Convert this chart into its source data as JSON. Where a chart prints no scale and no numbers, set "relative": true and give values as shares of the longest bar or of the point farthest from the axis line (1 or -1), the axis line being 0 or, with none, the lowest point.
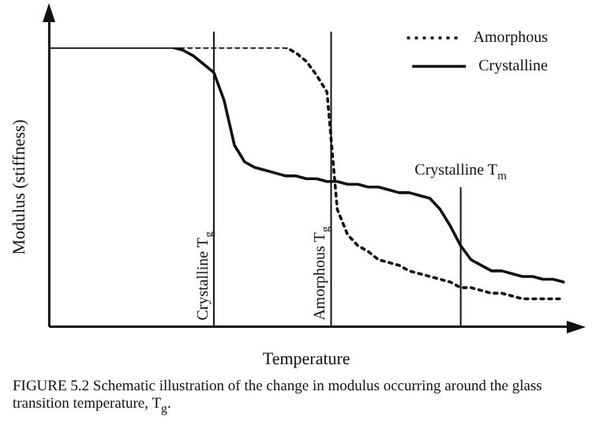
{
  "chart_data": {
    "type": "line",
    "relative": true,
    "xlabel": "Temperature",
    "ylabel": "Modulus (stiffness)",
    "grid": false,
    "legend": "top right",
    "marker": "none",
    "categories": [
      null,
      null,
      null,
      null,
      null,
      null,
      null,
      null,
      null,
      null,
      null,
      null,
      null,
      null,
      null,
      null,
      null,
      null,
      null,
      null,
      null,
      null,
      null,
      null,
      null,
      null,
      null,
      null,
      null,
      null,
      null,
      null,
      null,
      null,
      null,
      null,
      null,
      null,
      null,
      null,
      null,
      null,
      null,
      null,
      null,
      null,
      null,
      null,
      null,
      null,
      null
    ],
    "series": [
      {
        "name": "Amorphous",
        "color": "#111111",
        "line_style": "dotted",
        "values": [
          null,
          null,
          null,
          null,
          null,
          null,
          null,
          null,
          null,
          null,
          null,
          null,
          1,
          1,
          1,
          1,
          1,
          1,
          1,
          1,
          1,
          1,
          1,
          1,
          0.98,
          0.95,
          0.9,
          0.84,
          0.42,
          0.33,
          0.29,
          0.27,
          0.24,
          0.23,
          0.22,
          0.2,
          0.19,
          0.18,
          0.17,
          0.16,
          0.14,
          0.14,
          0.13,
          0.12,
          0.12,
          0.11,
          0.1,
          0.1,
          0.1,
          0.1,
          0.1
        ]
      },
      {
        "name": "Crystalline",
        "color": "#111111",
        "line_style": "solid",
        "values": [
          1,
          1,
          1,
          1,
          1,
          1,
          1,
          1,
          1,
          1,
          1,
          1,
          1,
          0.99,
          0.97,
          0.94,
          0.91,
          0.81,
          0.65,
          0.59,
          0.57,
          0.56,
          0.55,
          0.54,
          0.54,
          0.53,
          0.53,
          0.52,
          0.52,
          0.51,
          0.51,
          0.5,
          0.5,
          0.49,
          0.48,
          0.48,
          0.47,
          0.46,
          0.42,
          0.36,
          0.29,
          0.24,
          0.22,
          0.2,
          0.2,
          0.19,
          0.18,
          0.18,
          0.17,
          0.17,
          0.16
        ]
      }
    ],
    "annotations": [
      "Crystalline T$_{g}$",
      "Amorphous T$_{g}$",
      "Crystalline T$_{m}$",
      "FIGURE 5.2 Schematic illustration of the change in modulus occurring around the glass transition temperature, T$_{g}$."
    ]
  }
}
